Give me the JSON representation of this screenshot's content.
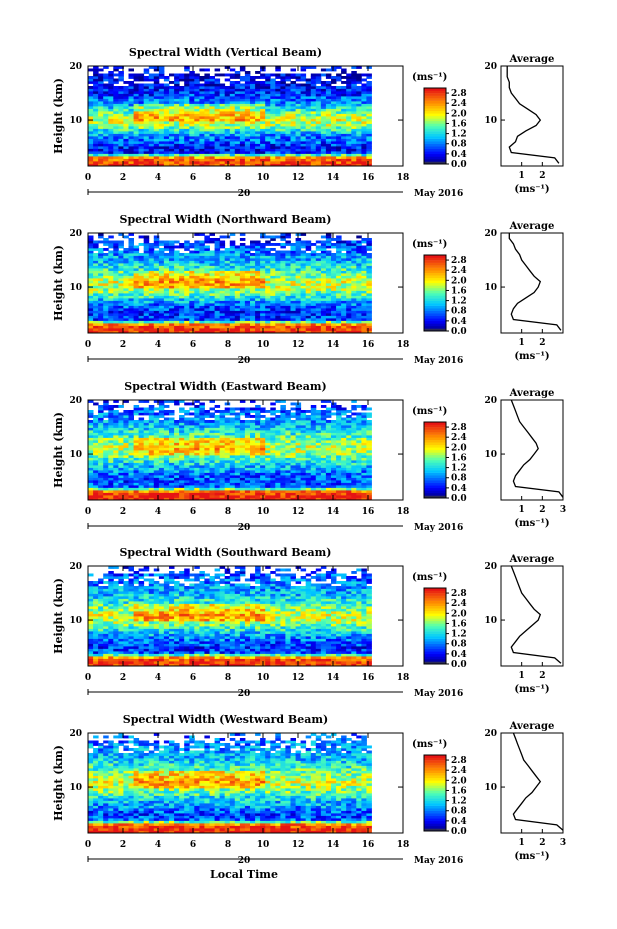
{
  "figure": {
    "xlabel": "Local Time",
    "date_day": "20",
    "date_month_year": "May 2016",
    "colorbar_unit": "(ms⁻¹)",
    "avg_title": "Average",
    "avg_xlabel": "(ms⁻¹)"
  },
  "chart_data": [
    {
      "type": "heatmap",
      "title": "Spectral Width (Vertical Beam)",
      "ylabel": "Height (km)",
      "xlim": [
        0,
        18
      ],
      "ylim": [
        1.5,
        20
      ],
      "x_ticks": [
        "0",
        "2",
        "4",
        "6",
        "8",
        "10",
        "12",
        "14",
        "16",
        "18"
      ],
      "y_ticks": [
        "10",
        "20"
      ],
      "colorbar": {
        "range": [
          0,
          3
        ],
        "ticks": [
          "0.0",
          "0.4",
          "0.8",
          "1.2",
          "1.6",
          "2.0",
          "2.4",
          "2.8"
        ]
      },
      "average_profile": {
        "xlim": [
          0,
          3
        ],
        "x_ticks": [
          "1",
          "2"
        ],
        "height_km": [
          2,
          3,
          4,
          5,
          6,
          7,
          8,
          9,
          10,
          11,
          12,
          13,
          14,
          15,
          16,
          17,
          18,
          19,
          20
        ],
        "width_ms": [
          2.8,
          2.6,
          0.5,
          0.4,
          0.7,
          0.8,
          1.2,
          1.7,
          1.9,
          1.7,
          1.3,
          0.9,
          0.7,
          0.5,
          0.4,
          0.4,
          0.3,
          0.3,
          0.3
        ]
      }
    },
    {
      "type": "heatmap",
      "title": "Spectral Width (Northward Beam)",
      "ylabel": "Height (km)",
      "xlim": [
        0,
        18
      ],
      "ylim": [
        1.5,
        20
      ],
      "x_ticks": [
        "0",
        "2",
        "4",
        "6",
        "8",
        "10",
        "12",
        "14",
        "16",
        "18"
      ],
      "y_ticks": [
        "10",
        "20"
      ],
      "colorbar": {
        "range": [
          0,
          3
        ],
        "ticks": [
          "0.0",
          "0.4",
          "0.8",
          "1.2",
          "1.6",
          "2.0",
          "2.4",
          "2.8"
        ]
      },
      "average_profile": {
        "xlim": [
          0,
          3
        ],
        "x_ticks": [
          "1",
          "2"
        ],
        "height_km": [
          2,
          3,
          4,
          5,
          6,
          7,
          8,
          9,
          10,
          11,
          12,
          13,
          14,
          15,
          16,
          17,
          18,
          19,
          20
        ],
        "width_ms": [
          2.9,
          2.7,
          0.6,
          0.5,
          0.6,
          0.8,
          1.2,
          1.6,
          1.8,
          1.9,
          1.6,
          1.4,
          1.2,
          1.0,
          0.9,
          0.7,
          0.6,
          0.4,
          0.4
        ]
      }
    },
    {
      "type": "heatmap",
      "title": "Spectral Width (Eastward Beam)",
      "ylabel": "Height (km)",
      "xlim": [
        0,
        18
      ],
      "ylim": [
        1.5,
        20
      ],
      "x_ticks": [
        "0",
        "2",
        "4",
        "6",
        "8",
        "10",
        "12",
        "14",
        "16",
        "18"
      ],
      "y_ticks": [
        "10",
        "20"
      ],
      "colorbar": {
        "range": [
          0,
          3
        ],
        "ticks": [
          "0.0",
          "0.4",
          "0.8",
          "1.2",
          "1.6",
          "2.0",
          "2.4",
          "2.8"
        ]
      },
      "average_profile": {
        "xlim": [
          0,
          3
        ],
        "x_ticks": [
          "1",
          "2",
          "3"
        ],
        "height_km": [
          2,
          3,
          4,
          5,
          6,
          7,
          8,
          9,
          10,
          11,
          12,
          13,
          14,
          15,
          16,
          17,
          18,
          19,
          20
        ],
        "width_ms": [
          3.0,
          2.8,
          0.7,
          0.6,
          0.7,
          0.9,
          1.1,
          1.4,
          1.6,
          1.8,
          1.7,
          1.5,
          1.3,
          1.1,
          0.9,
          0.8,
          0.7,
          0.6,
          0.5
        ]
      }
    },
    {
      "type": "heatmap",
      "title": "Spectral Width (Southward Beam)",
      "ylabel": "Height (km)",
      "xlim": [
        0,
        18
      ],
      "ylim": [
        1.5,
        20
      ],
      "x_ticks": [
        "0",
        "2",
        "4",
        "6",
        "8",
        "10",
        "12",
        "14",
        "16",
        "18"
      ],
      "y_ticks": [
        "10",
        "20"
      ],
      "colorbar": {
        "range": [
          0,
          3
        ],
        "ticks": [
          "0.0",
          "0.4",
          "0.8",
          "1.2",
          "1.6",
          "2.0",
          "2.4",
          "2.8"
        ]
      },
      "average_profile": {
        "xlim": [
          0,
          3
        ],
        "x_ticks": [
          "1",
          "2"
        ],
        "height_km": [
          2,
          3,
          4,
          5,
          6,
          7,
          8,
          9,
          10,
          11,
          12,
          13,
          14,
          15,
          16,
          17,
          18,
          19,
          20
        ],
        "width_ms": [
          2.9,
          2.6,
          0.6,
          0.5,
          0.7,
          0.9,
          1.2,
          1.5,
          1.8,
          1.9,
          1.6,
          1.4,
          1.2,
          1.0,
          0.9,
          0.8,
          0.7,
          0.6,
          0.5
        ]
      }
    },
    {
      "type": "heatmap",
      "title": "Spectral Width (Westward Beam)",
      "ylabel": "Height (km)",
      "xlim": [
        0,
        18
      ],
      "ylim": [
        1.5,
        20
      ],
      "x_ticks": [
        "0",
        "2",
        "4",
        "6",
        "8",
        "10",
        "12",
        "14",
        "16",
        "18"
      ],
      "y_ticks": [
        "10",
        "20"
      ],
      "colorbar": {
        "range": [
          0,
          3
        ],
        "ticks": [
          "0.0",
          "0.4",
          "0.8",
          "1.2",
          "1.6",
          "2.0",
          "2.4",
          "2.8"
        ]
      },
      "average_profile": {
        "xlim": [
          0,
          3
        ],
        "x_ticks": [
          "1",
          "2",
          "3"
        ],
        "height_km": [
          2,
          3,
          4,
          5,
          6,
          7,
          8,
          9,
          10,
          11,
          12,
          13,
          14,
          15,
          16,
          17,
          18,
          19,
          20
        ],
        "width_ms": [
          3.0,
          2.7,
          0.7,
          0.6,
          0.8,
          1.0,
          1.2,
          1.5,
          1.7,
          1.9,
          1.7,
          1.5,
          1.3,
          1.1,
          1.0,
          0.9,
          0.8,
          0.7,
          0.6
        ]
      }
    }
  ]
}
